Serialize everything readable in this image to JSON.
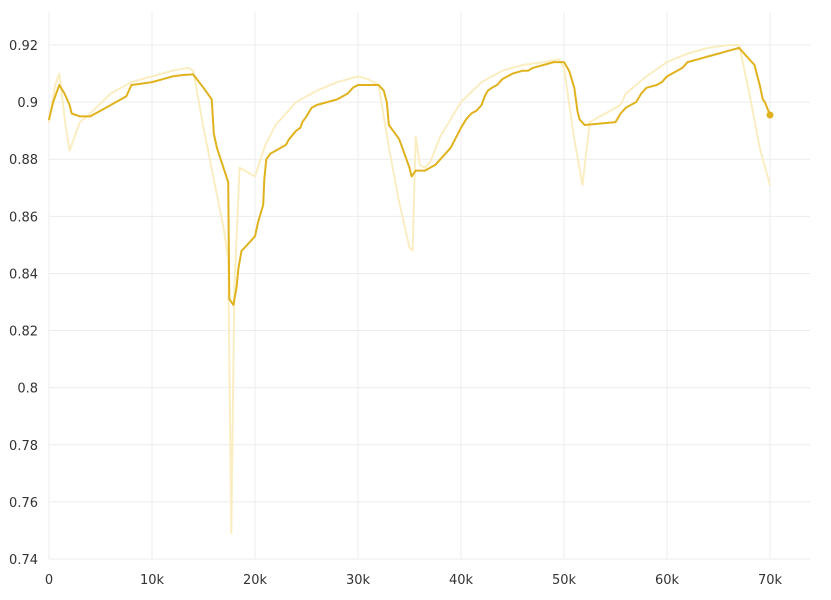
{
  "chart_data": {
    "type": "line",
    "title": "",
    "xlabel": "",
    "ylabel": "",
    "xlim": [
      0,
      74000
    ],
    "ylim": [
      0.74,
      0.925
    ],
    "grid": true,
    "x_ticks": [
      0,
      10000,
      20000,
      30000,
      40000,
      50000,
      60000,
      70000
    ],
    "x_tick_labels": [
      "0",
      "10k",
      "20k",
      "30k",
      "40k",
      "50k",
      "60k",
      "70k"
    ],
    "y_ticks": [
      0.74,
      0.76,
      0.78,
      0.8,
      0.82,
      0.84,
      0.86,
      0.88,
      0.9,
      0.92
    ],
    "y_tick_labels": [
      "0.74",
      "0.76",
      "0.78",
      "0.8",
      "0.82",
      "0.84",
      "0.86",
      "0.88",
      "0.9",
      "0.92"
    ],
    "colors": {
      "smoothed": "#e0b21e",
      "raw": "#fbedc2",
      "grid": "#ececec",
      "text": "#333333"
    },
    "series": [
      {
        "role": "raw",
        "x": [
          0,
          600,
          1000,
          1600,
          2000,
          3000,
          4000,
          6000,
          8000,
          10000,
          12000,
          13500,
          14000,
          15000,
          16000,
          17000,
          17400,
          17700,
          18000,
          18500,
          19000,
          20000,
          21000,
          22000,
          24000,
          26000,
          28000,
          30000,
          31000,
          32000,
          33000,
          34000,
          35000,
          35300,
          35600,
          36000,
          36500,
          37000,
          38000,
          40000,
          42000,
          44000,
          46000,
          48000,
          49500,
          50000,
          51000,
          51800,
          52500,
          53500,
          54500,
          55500,
          56000,
          58000,
          60000,
          62000,
          64000,
          66000,
          67000,
          68000,
          69000,
          70000
        ],
        "y": [
          0.893,
          0.906,
          0.91,
          0.892,
          0.883,
          0.893,
          0.896,
          0.903,
          0.907,
          0.909,
          0.911,
          0.912,
          0.911,
          0.891,
          0.873,
          0.855,
          0.845,
          0.749,
          0.835,
          0.877,
          0.876,
          0.874,
          0.885,
          0.892,
          0.9,
          0.904,
          0.907,
          0.909,
          0.908,
          0.906,
          0.884,
          0.865,
          0.849,
          0.848,
          0.888,
          0.878,
          0.877,
          0.879,
          0.888,
          0.9,
          0.907,
          0.911,
          0.913,
          0.914,
          0.915,
          0.912,
          0.887,
          0.871,
          0.893,
          0.895,
          0.897,
          0.899,
          0.903,
          0.909,
          0.914,
          0.917,
          0.919,
          0.92,
          0.92,
          0.903,
          0.884,
          0.871
        ]
      },
      {
        "role": "smoothed",
        "x": [
          0,
          400,
          1000,
          1500,
          2000,
          2200,
          3000,
          4000,
          5000,
          6000,
          7000,
          7500,
          8000,
          9000,
          10000,
          11000,
          12000,
          13000,
          14000,
          15000,
          15800,
          16000,
          16300,
          17400,
          17500,
          17900,
          18200,
          18400,
          18700,
          19000,
          20000,
          20300,
          20800,
          20900,
          21100,
          21500,
          22000,
          23000,
          23300,
          24000,
          24400,
          24600,
          25000,
          25500,
          26000,
          27000,
          28000,
          28500,
          29000,
          29500,
          30000,
          31000,
          32000,
          32500,
          32800,
          33000,
          34000,
          34600,
          35000,
          35200,
          35600,
          36000,
          36500,
          37000,
          37500,
          38000,
          39000,
          40000,
          40500,
          41000,
          41500,
          42000,
          42300,
          42600,
          43000,
          43500,
          44000,
          45000,
          46000,
          46500,
          47000,
          48000,
          49000,
          50000,
          50500,
          51000,
          51300,
          51500,
          52000,
          55000,
          55500,
          56000,
          57000,
          57500,
          58000,
          59000,
          59500,
          60000,
          61000,
          61500,
          62000,
          63000,
          64000,
          65000,
          66000,
          67000,
          68500,
          69000,
          69300,
          69500,
          70000
        ],
        "y": [
          0.894,
          0.9,
          0.906,
          0.903,
          0.899,
          0.896,
          0.895,
          0.895,
          0.897,
          0.899,
          0.901,
          0.902,
          0.906,
          0.9065,
          0.907,
          0.908,
          0.909,
          0.9095,
          0.9097,
          0.905,
          0.901,
          0.889,
          0.884,
          0.872,
          0.831,
          0.829,
          0.835,
          0.842,
          0.848,
          0.849,
          0.853,
          0.858,
          0.864,
          0.873,
          0.88,
          0.882,
          0.883,
          0.885,
          0.887,
          0.89,
          0.891,
          0.893,
          0.895,
          0.898,
          0.899,
          0.9,
          0.901,
          0.902,
          0.903,
          0.905,
          0.906,
          0.906,
          0.906,
          0.904,
          0.9,
          0.892,
          0.887,
          0.881,
          0.877,
          0.874,
          0.876,
          0.876,
          0.876,
          0.877,
          0.878,
          0.88,
          0.884,
          0.891,
          0.894,
          0.896,
          0.897,
          0.899,
          0.902,
          0.904,
          0.905,
          0.906,
          0.908,
          0.91,
          0.911,
          0.911,
          0.912,
          0.913,
          0.914,
          0.914,
          0.911,
          0.905,
          0.897,
          0.894,
          0.892,
          0.893,
          0.896,
          0.898,
          0.9,
          0.903,
          0.905,
          0.906,
          0.907,
          0.909,
          0.911,
          0.912,
          0.914,
          0.915,
          0.916,
          0.917,
          0.918,
          0.919,
          0.913,
          0.906,
          0.901,
          0.9,
          0.8955
        ]
      }
    ]
  }
}
